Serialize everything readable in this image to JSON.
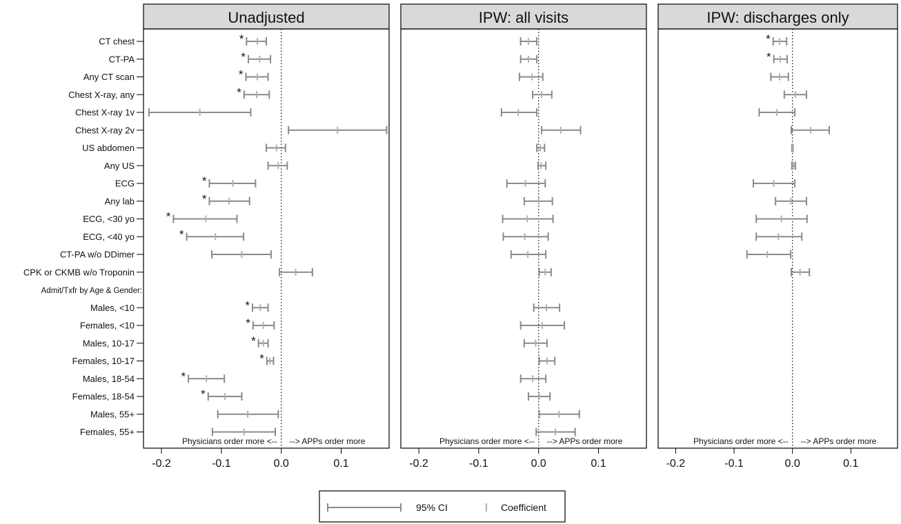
{
  "chart_data": {
    "type": "forest",
    "panels": [
      {
        "title": "Unadjusted"
      },
      {
        "title": "IPW: all visits"
      },
      {
        "title": "IPW: discharges only"
      }
    ],
    "rows": [
      "CT chest",
      "CT-PA",
      "Any CT scan",
      "Chest X-ray, any",
      "Chest X-ray 1v",
      "Chest X-ray 2v",
      "US abdomen",
      "Any US",
      "ECG",
      "Any lab",
      "ECG, <30 yo",
      "ECG, <40 yo",
      "CT-PA w/o DDimer",
      "CPK or CKMB w/o Troponin",
      "Admit/Txfr by Age & Gender:",
      "Males, <10",
      "Females, <10",
      "Males, 10-17",
      "Females, 10-17",
      "Males, 18-54",
      "Females, 18-54",
      "Males, 55+",
      "Females, 55+"
    ],
    "header_row_index": 14,
    "x_ticks": [
      -0.2,
      -0.1,
      0.0,
      0.1
    ],
    "x_tick_labels": [
      "-0.2",
      "-0.1",
      "0.0",
      "0.1"
    ],
    "xlim": [
      -0.23,
      0.18
    ],
    "reference_line": 0.0,
    "note_left": "Physicians order more <--",
    "note_right": "--> APPs order more",
    "significance_marker": "*",
    "series": [
      {
        "panel": "Unadjusted",
        "lower": [
          -0.058,
          -0.055,
          -0.059,
          -0.062,
          -0.221,
          0.012,
          -0.025,
          -0.022,
          -0.12,
          -0.12,
          -0.18,
          -0.158,
          -0.116,
          -0.003,
          null,
          -0.048,
          -0.047,
          -0.038,
          -0.024,
          -0.155,
          -0.122,
          -0.106,
          -0.115
        ],
        "coef": [
          -0.04,
          -0.036,
          -0.04,
          -0.041,
          -0.136,
          0.094,
          -0.008,
          -0.005,
          -0.081,
          -0.087,
          -0.126,
          -0.11,
          -0.066,
          0.024,
          null,
          -0.035,
          -0.03,
          -0.03,
          -0.019,
          -0.125,
          -0.094,
          -0.056,
          -0.062
        ],
        "upper": [
          -0.025,
          -0.018,
          -0.022,
          -0.02,
          -0.051,
          0.176,
          0.007,
          0.01,
          -0.043,
          -0.053,
          -0.074,
          -0.063,
          -0.017,
          0.052,
          null,
          -0.022,
          -0.012,
          -0.022,
          -0.013,
          -0.095,
          -0.066,
          -0.005,
          -0.01
        ],
        "significant": [
          true,
          true,
          true,
          true,
          false,
          false,
          false,
          false,
          true,
          true,
          true,
          true,
          false,
          false,
          false,
          true,
          true,
          true,
          true,
          true,
          true,
          false,
          false
        ]
      },
      {
        "panel": "IPW: all visits",
        "lower": [
          -0.03,
          -0.03,
          -0.032,
          -0.01,
          -0.062,
          0.005,
          -0.003,
          -0.001,
          -0.053,
          -0.024,
          -0.06,
          -0.059,
          -0.046,
          0.001,
          null,
          -0.008,
          -0.03,
          -0.024,
          0.001,
          -0.03,
          -0.017,
          0.001,
          -0.004
        ],
        "coef": [
          -0.017,
          -0.017,
          -0.011,
          0.005,
          -0.034,
          0.037,
          0.003,
          0.004,
          -0.022,
          0.0,
          -0.019,
          -0.023,
          -0.018,
          0.011,
          null,
          0.013,
          0.006,
          -0.005,
          0.014,
          -0.01,
          0.001,
          0.034,
          0.028
        ],
        "upper": [
          -0.003,
          -0.003,
          0.007,
          0.022,
          -0.003,
          0.07,
          0.01,
          0.012,
          0.011,
          0.023,
          0.024,
          0.016,
          0.012,
          0.021,
          null,
          0.035,
          0.043,
          0.014,
          0.027,
          0.012,
          0.019,
          0.068,
          0.061
        ],
        "significant": [
          false,
          false,
          false,
          false,
          false,
          false,
          false,
          false,
          false,
          false,
          false,
          false,
          false,
          false,
          false,
          false,
          false,
          false,
          false,
          false,
          false,
          false,
          false
        ]
      },
      {
        "panel": "IPW: discharges only",
        "lower": [
          -0.033,
          -0.032,
          -0.037,
          -0.014,
          -0.057,
          -0.002,
          -0.001,
          -0.001,
          -0.067,
          -0.029,
          -0.062,
          -0.062,
          -0.078,
          -0.002,
          null,
          null,
          null,
          null,
          null,
          null,
          null,
          null,
          null
        ],
        "coef": [
          -0.022,
          -0.021,
          -0.022,
          0.005,
          -0.027,
          0.031,
          0.0,
          0.002,
          -0.032,
          -0.003,
          -0.019,
          -0.024,
          -0.043,
          0.013,
          null,
          null,
          null,
          null,
          null,
          null,
          null,
          null,
          null
        ],
        "upper": [
          -0.01,
          -0.009,
          -0.007,
          0.024,
          0.004,
          0.063,
          0.001,
          0.005,
          0.004,
          0.024,
          0.025,
          0.016,
          -0.003,
          0.029,
          null,
          null,
          null,
          null,
          null,
          null,
          null,
          null,
          null
        ],
        "significant": [
          true,
          true,
          false,
          false,
          false,
          false,
          false,
          false,
          false,
          false,
          false,
          false,
          false,
          false,
          false,
          false,
          false,
          false,
          false,
          false,
          false,
          false,
          false
        ]
      }
    ],
    "legend": {
      "placement": "bottom-center",
      "items": [
        {
          "label": "95% CI",
          "kind": "ci"
        },
        {
          "label": "Coefficient",
          "kind": "coef"
        }
      ]
    }
  },
  "colors": {
    "ci": "#8a8a8a",
    "coef": "#b0b0b0",
    "header_fill": "#d9d9d9",
    "frame": "#000000",
    "text": "#111111"
  }
}
